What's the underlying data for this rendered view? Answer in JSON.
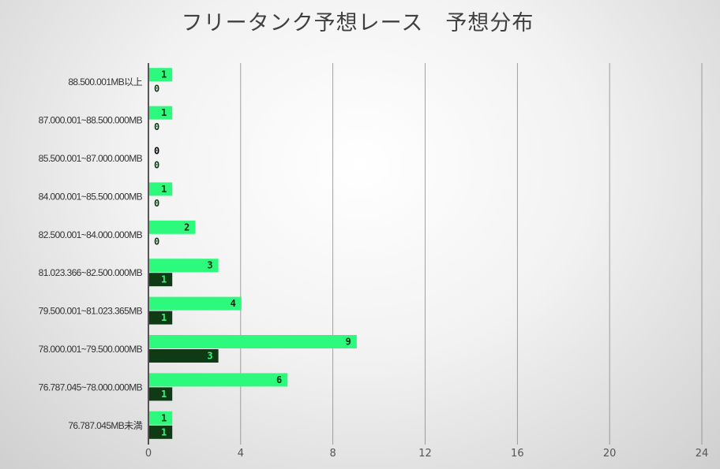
{
  "chart_data": {
    "type": "bar",
    "orientation": "horizontal",
    "title": "フリータンク予想レース　予想分布",
    "categories": [
      "88.500.001MB以上",
      "87.000.001~88.500.000MB",
      "85.500.001~87.000.000MB",
      "84.000.001~85.500.000MB",
      "82.500.001~84.000.000MB",
      "81.023.366~82.500.000MB",
      "79.500.001~81.023.365MB",
      "78.000.001~79.500.000MB",
      "76.787.045~78.000.000MB",
      "76.787.045MB未満"
    ],
    "series": [
      {
        "values": [
          1,
          1,
          0,
          1,
          2,
          3,
          4,
          9,
          6,
          1
        ],
        "color": "#2dfa7c",
        "label_color": "#0a2a12"
      },
      {
        "values": [
          0,
          0,
          0,
          0,
          0,
          1,
          1,
          3,
          1,
          1
        ],
        "color": "#0e3a14",
        "label_color": "#2dfa7c"
      }
    ],
    "xlim": [
      0,
      24
    ],
    "xticks": [
      "0",
      "4",
      "8",
      "12",
      "16",
      "20",
      "24"
    ],
    "grid": true,
    "legend": "none",
    "zero_label_color_series1": "#000000"
  }
}
